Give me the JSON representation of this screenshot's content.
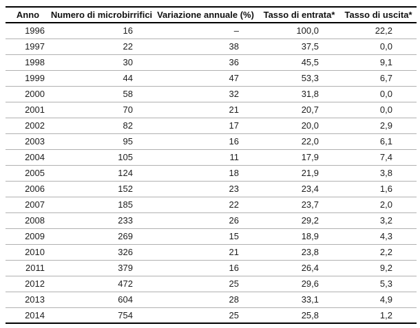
{
  "table": {
    "columns": [
      {
        "label": "Anno"
      },
      {
        "label": "Numero di microbirrifici"
      },
      {
        "label": "Variazione annuale (%)"
      },
      {
        "label": "Tasso di entrata*"
      },
      {
        "label": "Tasso di uscita*"
      }
    ],
    "rows": [
      [
        "1996",
        "16",
        "–",
        "100,0",
        "22,2"
      ],
      [
        "1997",
        "22",
        "38",
        "37,5",
        "0,0"
      ],
      [
        "1998",
        "30",
        "36",
        "45,5",
        "9,1"
      ],
      [
        "1999",
        "44",
        "47",
        "53,3",
        "6,7"
      ],
      [
        "2000",
        "58",
        "32",
        "31,8",
        "0,0"
      ],
      [
        "2001",
        "70",
        "21",
        "20,7",
        "0,0"
      ],
      [
        "2002",
        "82",
        "17",
        "20,0",
        "2,9"
      ],
      [
        "2003",
        "95",
        "16",
        "22,0",
        "6,1"
      ],
      [
        "2004",
        "105",
        "11",
        "17,9",
        "7,4"
      ],
      [
        "2005",
        "124",
        "18",
        "21,9",
        "3,8"
      ],
      [
        "2006",
        "152",
        "23",
        "23,4",
        "1,6"
      ],
      [
        "2007",
        "185",
        "22",
        "23,7",
        "2,0"
      ],
      [
        "2008",
        "233",
        "26",
        "29,2",
        "3,2"
      ],
      [
        "2009",
        "269",
        "15",
        "18,9",
        "4,3"
      ],
      [
        "2010",
        "326",
        "21",
        "23,8",
        "2,2"
      ],
      [
        "2011",
        "379",
        "16",
        "26,4",
        "9,2"
      ],
      [
        "2012",
        "472",
        "25",
        "29,6",
        "5,3"
      ],
      [
        "2013",
        "604",
        "28",
        "33,1",
        "4,9"
      ],
      [
        "2014",
        "754",
        "25",
        "25,8",
        "1,2"
      ]
    ]
  },
  "chart_data": {
    "type": "table",
    "title": "",
    "columns": [
      "Anno",
      "Numero di microbirrifici",
      "Variazione annuale (%)",
      "Tasso di entrata*",
      "Tasso di uscita*"
    ],
    "years": [
      1996,
      1997,
      1998,
      1999,
      2000,
      2001,
      2002,
      2003,
      2004,
      2005,
      2006,
      2007,
      2008,
      2009,
      2010,
      2011,
      2012,
      2013,
      2014
    ],
    "series": [
      {
        "name": "Numero di microbirrifici",
        "values": [
          16,
          22,
          30,
          44,
          58,
          70,
          82,
          95,
          105,
          124,
          152,
          185,
          233,
          269,
          326,
          379,
          472,
          604,
          754
        ]
      },
      {
        "name": "Variazione annuale (%)",
        "values": [
          null,
          38,
          36,
          47,
          32,
          21,
          17,
          16,
          11,
          18,
          23,
          22,
          26,
          15,
          21,
          16,
          25,
          28,
          25
        ]
      },
      {
        "name": "Tasso di entrata*",
        "values": [
          100.0,
          37.5,
          45.5,
          53.3,
          31.8,
          20.7,
          20.0,
          22.0,
          17.9,
          21.9,
          23.4,
          23.7,
          29.2,
          18.9,
          23.8,
          26.4,
          29.6,
          33.1,
          25.8
        ]
      },
      {
        "name": "Tasso di uscita*",
        "values": [
          22.2,
          0.0,
          9.1,
          6.7,
          0.0,
          0.0,
          2.9,
          6.1,
          7.4,
          3.8,
          1.6,
          2.0,
          3.2,
          4.3,
          2.2,
          9.2,
          5.3,
          4.9,
          1.2
        ]
      }
    ],
    "missing_value_symbol": "–"
  },
  "colors": {
    "background": "#ffffff",
    "heavy_rule": "#000000",
    "row_separator": "#b0b0b0",
    "header_text": "#111111",
    "body_text": "#1c1c1c"
  }
}
